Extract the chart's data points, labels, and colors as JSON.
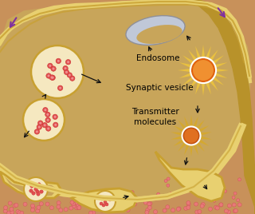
{
  "cell_fill": "#c8a55a",
  "cell_fill2": "#b8922a",
  "outside_fill": "#c8915a",
  "membrane_color": "#e8d070",
  "membrane_outline": "#c8a030",
  "vesicle_fill": "#f5e8c0",
  "vesicle_outline": "#c8a030",
  "dot_fill": "#e05050",
  "dot_outline": "#cc3030",
  "endosome_fill": "#c0c8d8",
  "endosome_outline": "#909098",
  "sun_ray_color": "#e8c040",
  "sun_inner_fill": "#f09030",
  "sun_inner_outline": "#e06010",
  "arrow_color": "#111111",
  "purple_color": "#8030a0",
  "cleft_dot_fill": "#e87878",
  "label_endosome": "Endosome",
  "label_vesicle": "Synaptic vesicle",
  "label_transmitter": "Transmitter\nmolecules",
  "font_size": 7.5
}
